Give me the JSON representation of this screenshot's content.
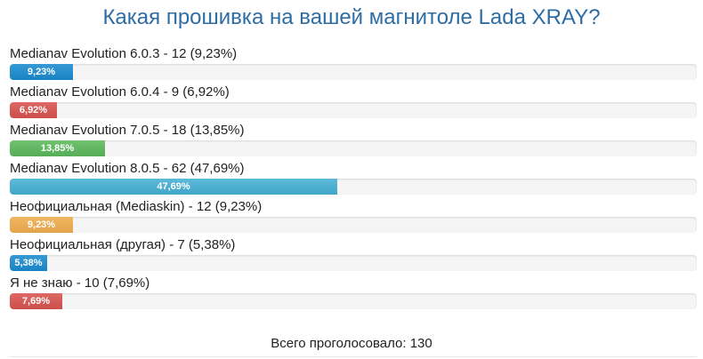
{
  "poll": {
    "title": "Какая прошивка на вашей магнитоле Lada XRAY?",
    "total_text": "Всего проголосовало: 130",
    "options": [
      {
        "label": "Medianav Evolution 6.0.3 - 12 (9,23%)",
        "percent_label": "9,23%",
        "fraction": 0.0923,
        "color": "#1a8bd0"
      },
      {
        "label": "Medianav Evolution 6.0.4 - 9 (6,92%)",
        "percent_label": "6,92%",
        "fraction": 0.0692,
        "color": "#d9534f"
      },
      {
        "label": "Medianav Evolution 7.0.5 - 18 (13,85%)",
        "percent_label": "13,85%",
        "fraction": 0.1385,
        "color": "#5cb85c"
      },
      {
        "label": "Medianav Evolution 8.0.5 - 62 (47,69%)",
        "percent_label": "47,69%",
        "fraction": 0.4769,
        "color": "#46b0d4"
      },
      {
        "label": "Неофициальная (Mediaskin) - 12 (9,23%)",
        "percent_label": "9,23%",
        "fraction": 0.0923,
        "color": "#f0ad4e"
      },
      {
        "label": "Неофициальная (другая) - 7 (5,38%)",
        "percent_label": "5,38%",
        "fraction": 0.0538,
        "color": "#1a8bd0"
      },
      {
        "label": "Я не знаю - 10 (7,69%)",
        "percent_label": "7,69%",
        "fraction": 0.0769,
        "color": "#d9534f"
      }
    ]
  }
}
